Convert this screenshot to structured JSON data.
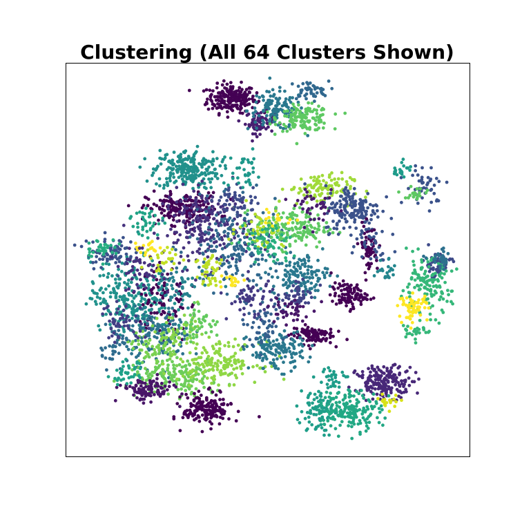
{
  "chart_data": {
    "type": "scatter",
    "title": "Clustering (All 64 Clusters Shown)",
    "xlabel": "",
    "ylabel": "",
    "xlim": [
      0,
      100
    ],
    "ylim": [
      0,
      100
    ],
    "grid": false,
    "legend": "none",
    "ticks": "hidden",
    "n_clusters": 64,
    "colormap": "viridis",
    "colormap_stops": [
      "#440154",
      "#3b528b",
      "#21918c",
      "#5ec962",
      "#fde725"
    ],
    "clusters": [
      {
        "id": 0,
        "color": "#440154",
        "center": [
          41,
          91
        ],
        "spread": [
          3.0,
          1.8
        ],
        "n": 220
      },
      {
        "id": 1,
        "color": "#481f70",
        "center": [
          48,
          85
        ],
        "spread": [
          1.8,
          1.4
        ],
        "n": 70
      },
      {
        "id": 2,
        "color": "#2a788e",
        "center": [
          52,
          88
        ],
        "spread": [
          3.5,
          2.5
        ],
        "n": 120
      },
      {
        "id": 3,
        "color": "#5ec962",
        "center": [
          59,
          86
        ],
        "spread": [
          3.2,
          1.6
        ],
        "n": 130
      },
      {
        "id": 4,
        "color": "#31688e",
        "center": [
          60,
          93
        ],
        "spread": [
          2.5,
          1.2
        ],
        "n": 45
      },
      {
        "id": 5,
        "color": "#21918c",
        "center": [
          30,
          73
        ],
        "spread": [
          4.0,
          2.5
        ],
        "n": 230
      },
      {
        "id": 6,
        "color": "#440154",
        "center": [
          29,
          63
        ],
        "spread": [
          4.5,
          2.0
        ],
        "n": 200
      },
      {
        "id": 7,
        "color": "#46327e",
        "center": [
          35,
          58
        ],
        "spread": [
          5.5,
          5.0
        ],
        "n": 220
      },
      {
        "id": 8,
        "color": "#31688e",
        "center": [
          42,
          53
        ],
        "spread": [
          6.0,
          5.5
        ],
        "n": 200
      },
      {
        "id": 9,
        "color": "#a0da39",
        "center": [
          63,
          68
        ],
        "spread": [
          4.0,
          2.0
        ],
        "n": 110
      },
      {
        "id": 10,
        "color": "#5ec962",
        "center": [
          56,
          58
        ],
        "spread": [
          4.5,
          2.5
        ],
        "n": 160
      },
      {
        "id": 11,
        "color": "#3b528b",
        "center": [
          71,
          63
        ],
        "spread": [
          3.5,
          3.0
        ],
        "n": 160
      },
      {
        "id": 12,
        "color": "#440154",
        "center": [
          75,
          53
        ],
        "spread": [
          1.2,
          3.0
        ],
        "n": 60
      },
      {
        "id": 13,
        "color": "#2a788e",
        "center": [
          58,
          46
        ],
        "spread": [
          3.5,
          2.5
        ],
        "n": 130
      },
      {
        "id": 14,
        "color": "#440154",
        "center": [
          70,
          41
        ],
        "spread": [
          2.2,
          1.6
        ],
        "n": 100
      },
      {
        "id": 15,
        "color": "#440154",
        "center": [
          61,
          31
        ],
        "spread": [
          2.6,
          1.2
        ],
        "n": 100
      },
      {
        "id": 16,
        "color": "#21918c",
        "center": [
          16,
          41
        ],
        "spread": [
          5.0,
          4.5
        ],
        "n": 240
      },
      {
        "id": 17,
        "color": "#3b528b",
        "center": [
          11,
          52
        ],
        "spread": [
          3.0,
          2.0
        ],
        "n": 80
      },
      {
        "id": 18,
        "color": "#440154",
        "center": [
          24,
          39
        ],
        "spread": [
          3.0,
          5.0
        ],
        "n": 90
      },
      {
        "id": 19,
        "color": "#2c728e",
        "center": [
          23,
          31
        ],
        "spread": [
          4.0,
          3.5
        ],
        "n": 150
      },
      {
        "id": 20,
        "color": "#6ccd5a",
        "center": [
          27,
          20
        ],
        "spread": [
          6.0,
          2.5
        ],
        "n": 170
      },
      {
        "id": 21,
        "color": "#8fd744",
        "center": [
          38,
          24
        ],
        "spread": [
          5.0,
          2.5
        ],
        "n": 160
      },
      {
        "id": 22,
        "color": "#481668",
        "center": [
          20,
          17
        ],
        "spread": [
          3.2,
          1.4
        ],
        "n": 110
      },
      {
        "id": 23,
        "color": "#440154",
        "center": [
          35,
          12
        ],
        "spread": [
          3.0,
          2.0
        ],
        "n": 170
      },
      {
        "id": 24,
        "color": "#2a788e",
        "center": [
          52,
          27
        ],
        "spread": [
          3.5,
          2.5
        ],
        "n": 140
      },
      {
        "id": 25,
        "color": "#482878",
        "center": [
          79,
          19
        ],
        "spread": [
          3.5,
          2.0
        ],
        "n": 190
      },
      {
        "id": 26,
        "color": "#22a884",
        "center": [
          70,
          12
        ],
        "spread": [
          4.0,
          2.5
        ],
        "n": 180
      },
      {
        "id": 27,
        "color": "#1f9e89",
        "center": [
          62,
          12
        ],
        "spread": [
          2.0,
          3.0
        ],
        "n": 70
      },
      {
        "id": 28,
        "color": "#3e4a89",
        "center": [
          92,
          49
        ],
        "spread": [
          1.8,
          1.6
        ],
        "n": 60
      },
      {
        "id": 29,
        "color": "#35b779",
        "center": [
          89,
          43
        ],
        "spread": [
          3.2,
          3.5
        ],
        "n": 140
      },
      {
        "id": 30,
        "color": "#fde725",
        "center": [
          86,
          38
        ],
        "spread": [
          1.8,
          1.6
        ],
        "n": 60
      },
      {
        "id": 31,
        "color": "#3b528b",
        "center": [
          89,
          69
        ],
        "spread": [
          2.5,
          2.5
        ],
        "n": 45
      },
      {
        "id": 32,
        "color": "#bddf26",
        "center": [
          36,
          47
        ],
        "spread": [
          2.0,
          3.0
        ],
        "n": 40
      },
      {
        "id": 33,
        "color": "#fde725",
        "center": [
          20,
          53
        ],
        "spread": [
          2.0,
          1.0
        ],
        "n": 20
      },
      {
        "id": 34,
        "color": "#b5de2b",
        "center": [
          48,
          58
        ],
        "spread": [
          3.0,
          2.5
        ],
        "n": 50
      },
      {
        "id": 35,
        "color": "#27ad81",
        "center": [
          9,
          53
        ],
        "spread": [
          2.0,
          1.2
        ],
        "n": 35
      },
      {
        "id": 36,
        "color": "#414487",
        "center": [
          58,
          41
        ],
        "spread": [
          2.0,
          1.5
        ],
        "n": 50
      },
      {
        "id": 37,
        "color": "#29af7f",
        "center": [
          50,
          54
        ],
        "spread": [
          3.0,
          3.0
        ],
        "n": 60
      },
      {
        "id": 38,
        "color": "#7ad151",
        "center": [
          22,
          28
        ],
        "spread": [
          3.0,
          2.0
        ],
        "n": 60
      },
      {
        "id": 39,
        "color": "#2f6c8e",
        "center": [
          12,
          28
        ],
        "spread": [
          2.0,
          3.0
        ],
        "n": 40
      },
      {
        "id": 40,
        "color": "#d8e219",
        "center": [
          80,
          14
        ],
        "spread": [
          1.5,
          1.0
        ],
        "n": 20
      },
      {
        "id": 41,
        "color": "#1fa188",
        "center": [
          15,
          21
        ],
        "spread": [
          2.0,
          1.5
        ],
        "n": 35
      },
      {
        "id": 42,
        "color": "#443983",
        "center": [
          46,
          40
        ],
        "spread": [
          3.0,
          2.5
        ],
        "n": 60
      },
      {
        "id": 43,
        "color": "#2d708e",
        "center": [
          93,
          50
        ],
        "spread": [
          1.5,
          1.2
        ],
        "n": 30
      },
      {
        "id": 44,
        "color": "#89d548",
        "center": [
          29,
          31
        ],
        "spread": [
          3.0,
          2.5
        ],
        "n": 50
      },
      {
        "id": 45,
        "color": "#26828e",
        "center": [
          27,
          43
        ],
        "spread": [
          3.5,
          3.0
        ],
        "n": 60
      },
      {
        "id": 46,
        "color": "#472f7d",
        "center": [
          18,
          47
        ],
        "spread": [
          3.0,
          2.5
        ],
        "n": 50
      },
      {
        "id": 47,
        "color": "#433e85",
        "center": [
          14,
          34
        ],
        "spread": [
          3.0,
          2.5
        ],
        "n": 50
      },
      {
        "id": 48,
        "color": "#20a386",
        "center": [
          20,
          60
        ],
        "spread": [
          2.0,
          2.0
        ],
        "n": 35
      },
      {
        "id": 49,
        "color": "#5ec962",
        "center": [
          87,
          67
        ],
        "spread": [
          1.5,
          1.0
        ],
        "n": 20
      },
      {
        "id": 50,
        "color": "#1e9b8a",
        "center": [
          83,
          73
        ],
        "spread": [
          1.2,
          1.0
        ],
        "n": 20
      },
      {
        "id": 51,
        "color": "#fde725",
        "center": [
          53,
          61
        ],
        "spread": [
          2.0,
          1.5
        ],
        "n": 15
      },
      {
        "id": 52,
        "color": "#3e4c8a",
        "center": [
          42,
          65
        ],
        "spread": [
          3.0,
          2.0
        ],
        "n": 50
      },
      {
        "id": 53,
        "color": "#481b6d",
        "center": [
          62,
          63
        ],
        "spread": [
          2.5,
          2.0
        ],
        "n": 40
      },
      {
        "id": 54,
        "color": "#1f988b",
        "center": [
          44,
          72
        ],
        "spread": [
          2.5,
          2.5
        ],
        "n": 35
      },
      {
        "id": 55,
        "color": "#63cb5f",
        "center": [
          33,
          34
        ],
        "spread": [
          2.5,
          2.0
        ],
        "n": 40
      },
      {
        "id": 56,
        "color": "#c2df23",
        "center": [
          25,
          50
        ],
        "spread": [
          2.0,
          2.0
        ],
        "n": 25
      },
      {
        "id": 57,
        "color": "#fde725",
        "center": [
          41,
          45
        ],
        "spread": [
          1.5,
          1.0
        ],
        "n": 15
      },
      {
        "id": 58,
        "color": "#355f8d",
        "center": [
          48,
          33
        ],
        "spread": [
          3.0,
          2.5
        ],
        "n": 50
      },
      {
        "id": 59,
        "color": "#1e9c89",
        "center": [
          66,
          20
        ],
        "spread": [
          2.0,
          1.5
        ],
        "n": 30
      },
      {
        "id": 60,
        "color": "#3a548c",
        "center": [
          76,
          55
        ],
        "spread": [
          2.0,
          2.5
        ],
        "n": 30
      },
      {
        "id": 61,
        "color": "#35b779",
        "center": [
          86,
          32
        ],
        "spread": [
          1.5,
          1.5
        ],
        "n": 25
      },
      {
        "id": 62,
        "color": "#24868e",
        "center": [
          79,
          48
        ],
        "spread": [
          1.5,
          1.5
        ],
        "n": 20
      },
      {
        "id": 63,
        "color": "#481769",
        "center": [
          55,
          37
        ],
        "spread": [
          2.5,
          2.0
        ],
        "n": 40
      }
    ]
  }
}
